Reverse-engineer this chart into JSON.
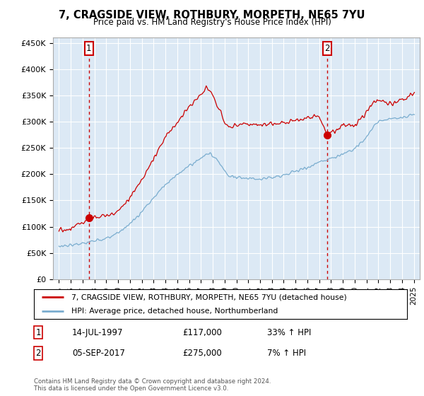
{
  "title": "7, CRAGSIDE VIEW, ROTHBURY, MORPETH, NE65 7YU",
  "subtitle": "Price paid vs. HM Land Registry's House Price Index (HPI)",
  "bg_color": "#dce9f5",
  "red_line_color": "#cc0000",
  "blue_line_color": "#7aadcf",
  "sale1_date": 1997.54,
  "sale1_price": 117000,
  "sale1_label": "1",
  "sale2_date": 2017.68,
  "sale2_price": 275000,
  "sale2_label": "2",
  "ylim_min": 0,
  "ylim_max": 460000,
  "xlim_min": 1994.5,
  "xlim_max": 2025.5,
  "legend_line1": "7, CRAGSIDE VIEW, ROTHBURY, MORPETH, NE65 7YU (detached house)",
  "legend_line2": "HPI: Average price, detached house, Northumberland",
  "table_row1_num": "1",
  "table_row1_date": "14-JUL-1997",
  "table_row1_price": "£117,000",
  "table_row1_hpi": "33% ↑ HPI",
  "table_row2_num": "2",
  "table_row2_date": "05-SEP-2017",
  "table_row2_price": "£275,000",
  "table_row2_hpi": "7% ↑ HPI",
  "footnote": "Contains HM Land Registry data © Crown copyright and database right 2024.\nThis data is licensed under the Open Government Licence v3.0.",
  "ytick_labels": [
    "£0",
    "£50K",
    "£100K",
    "£150K",
    "£200K",
    "£250K",
    "£300K",
    "£350K",
    "£400K",
    "£450K"
  ],
  "ytick_values": [
    0,
    50000,
    100000,
    150000,
    200000,
    250000,
    300000,
    350000,
    400000,
    450000
  ],
  "xtick_years": [
    1995,
    1996,
    1997,
    1998,
    1999,
    2000,
    2001,
    2002,
    2003,
    2004,
    2005,
    2006,
    2007,
    2008,
    2009,
    2010,
    2011,
    2012,
    2013,
    2014,
    2015,
    2016,
    2017,
    2018,
    2019,
    2020,
    2021,
    2022,
    2023,
    2024,
    2025
  ]
}
